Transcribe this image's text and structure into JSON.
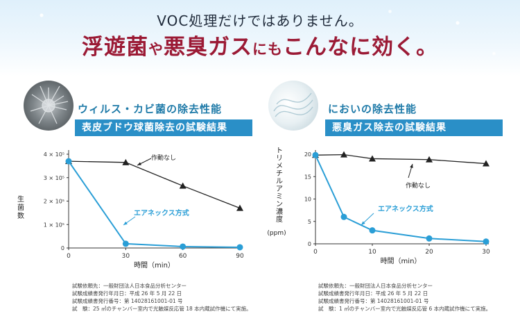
{
  "header": {
    "line1": "VOC処理だけではありません。",
    "line2_a": "浮遊菌",
    "line2_b": "や",
    "line2_c": "悪臭ガス",
    "line2_d": "にも",
    "line2_e": "こんなに効く。"
  },
  "left": {
    "title": "ウィルス・カビ菌の除去性能",
    "subtitle": "表皮ブドウ球菌除去の試験結果",
    "footnotes": [
      "試験依頼先：一般財団法人日本食品分析センター",
      "試験成績書発行年月日：平成 26 年 5 月 22 日",
      "試験成績書発行番号：第 14028161001-01 号",
      "試　験：25 ㎥のチャンバー室内で光触媒反応管 18 本内蔵試作機にて実施。"
    ]
  },
  "right": {
    "title": "においの除去性能",
    "subtitle": "悪臭ガス除去の試験結果",
    "footnotes": [
      "試験依頼先：一般財団法人日本食品分析センター",
      "試験成績書発行年月日：平成 26 年 5 月 22 日",
      "試験成績書発行番号：第 14028161001-01 号",
      "試　験：1 ㎥のチャンバー室内で光触媒反応管 6 本内蔵試作機にて実施。"
    ]
  },
  "colors": {
    "accent_blue": "#2a8fc7",
    "series_blue": "#2a9ed6",
    "series_black": "#222222",
    "headline_red": "#9b1a35"
  },
  "chart_data": [
    {
      "type": "line",
      "xlabel": "時間（min）",
      "ylabel": "生菌数",
      "x_ticks": [
        "0",
        "30",
        "60",
        "90"
      ],
      "y_ticks": [
        "0",
        "1 × 10⁵",
        "2 × 10⁵",
        "3 × 10⁵",
        "4 × 10⁵"
      ],
      "xlim": [
        0,
        90
      ],
      "ylim": [
        0,
        400000
      ],
      "series": [
        {
          "name": "作動なし",
          "color": "#222222",
          "marker": "triangle",
          "x": [
            0,
            30,
            60,
            90
          ],
          "y": [
            370000,
            365000,
            265000,
            170000
          ]
        },
        {
          "name": "エアネックス方式",
          "color": "#2a9ed6",
          "marker": "circle",
          "x": [
            0,
            30,
            60,
            90
          ],
          "y": [
            370000,
            18000,
            6000,
            3000
          ]
        }
      ]
    },
    {
      "type": "line",
      "xlabel": "時間（min）",
      "ylabel": "トリメチルアミン濃度",
      "ylabel_unit": "(ppm)",
      "x_ticks": [
        "0",
        "10",
        "20",
        "30"
      ],
      "y_ticks": [
        "0",
        "5",
        "10",
        "15",
        "20"
      ],
      "xlim": [
        0,
        30
      ],
      "ylim": [
        0,
        20
      ],
      "series": [
        {
          "name": "作動なし",
          "color": "#222222",
          "marker": "triangle",
          "x": [
            0,
            5,
            10,
            20,
            30
          ],
          "y": [
            19.8,
            19.9,
            19.0,
            18.8,
            17.9
          ]
        },
        {
          "name": "エアネックス方式",
          "color": "#2a9ed6",
          "marker": "circle",
          "x": [
            0,
            5,
            10,
            20,
            30
          ],
          "y": [
            19.8,
            6.0,
            3.0,
            1.2,
            0.5
          ]
        }
      ]
    }
  ]
}
